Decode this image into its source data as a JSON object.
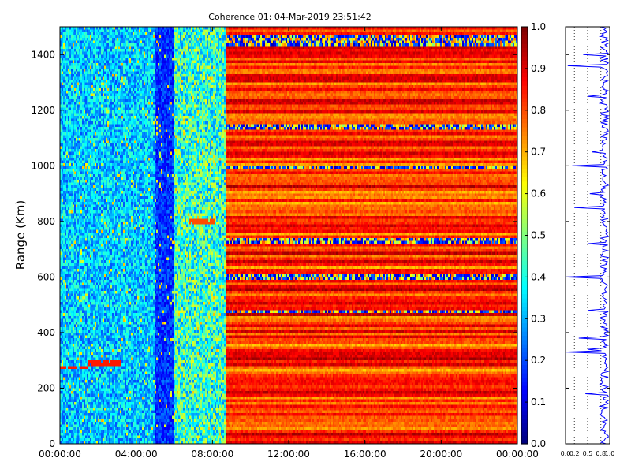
{
  "title": "Coherence 01: 04-Mar-2019 23:51:42",
  "chart_data": [
    {
      "type": "heatmap",
      "ylabel": "Range (Km)",
      "x_tick_labels": [
        "00:00:00",
        "04:00:00",
        "08:00:00",
        "12:00:00",
        "16:00:00",
        "20:00:00",
        "00:00:00"
      ],
      "x_range_hours": [
        0,
        24
      ],
      "ylim": [
        0,
        1500
      ],
      "y_ticks": [
        0,
        200,
        400,
        600,
        800,
        1000,
        1200,
        1400
      ],
      "colormap": "jet",
      "color_range": [
        0.0,
        1.0
      ],
      "colorbar_ticks": [
        "0.0",
        "0.1",
        "0.2",
        "0.3",
        "0.4",
        "0.5",
        "0.6",
        "0.7",
        "0.8",
        "0.9",
        "1.0"
      ],
      "regions": [
        {
          "hours": [
            0,
            5
          ],
          "coherence_range": [
            0.2,
            0.45
          ]
        },
        {
          "hours": [
            5,
            6
          ],
          "coherence_range": [
            0.1,
            0.25
          ]
        },
        {
          "hours": [
            6,
            8.7
          ],
          "coherence_range": [
            0.25,
            0.6
          ]
        },
        {
          "hours": [
            8.7,
            24
          ],
          "coherence_range": [
            0.7,
            0.95
          ]
        }
      ],
      "traced_features": [
        {
          "hours": [
            0,
            1.5
          ],
          "range_km": 275,
          "coherence": 0.85
        },
        {
          "hours": [
            1.5,
            3.2
          ],
          "range_km": 290,
          "coherence": 0.85
        },
        {
          "hours": [
            6.8,
            8.1
          ],
          "range_km": 800,
          "coherence": 0.8
        }
      ],
      "low_coherence_bands_km": [
        1460,
        1440,
        1140,
        995,
        730,
        600,
        475
      ],
      "grid": false
    },
    {
      "type": "line",
      "xlim": [
        0.0,
        1.0
      ],
      "x_ticks": [
        "0.0",
        "0.2",
        "0.5",
        "0.8",
        "1.0"
      ],
      "ylim": [
        0,
        1500
      ],
      "series": [
        {
          "color": "#0000ff"
        }
      ],
      "profile_baseline": 0.88,
      "profile_dips": [
        {
          "range_km": 1360,
          "value": 0.05
        },
        {
          "range_km": 1400,
          "value": 0.4
        },
        {
          "range_km": 1250,
          "value": 0.5
        },
        {
          "range_km": 1000,
          "value": 0.15
        },
        {
          "range_km": 1050,
          "value": 0.6
        },
        {
          "range_km": 900,
          "value": 0.55
        },
        {
          "range_km": 850,
          "value": 0.2
        },
        {
          "range_km": 720,
          "value": 0.5
        },
        {
          "range_km": 600,
          "value": 0.0
        },
        {
          "range_km": 480,
          "value": 0.5
        },
        {
          "range_km": 380,
          "value": 0.3
        },
        {
          "range_km": 340,
          "value": 0.5
        },
        {
          "range_km": 330,
          "value": 0.0
        },
        {
          "range_km": 180,
          "value": 0.45
        }
      ],
      "grid": "vertical dotted"
    }
  ],
  "colors": {
    "series_line": "#0000ff",
    "axis": "#000000",
    "background": "#ffffff"
  }
}
